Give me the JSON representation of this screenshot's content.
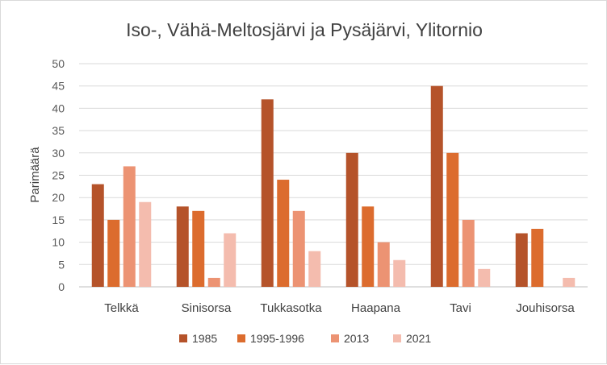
{
  "chart_data": {
    "type": "bar",
    "title": "Iso-, Vähä-Meltosjärvi ja Pysäjärvi, Ylitornio",
    "ylabel": "Parimäärä",
    "xlabel": "",
    "ylim": [
      0,
      50
    ],
    "yticks": [
      0,
      5,
      10,
      15,
      20,
      25,
      30,
      35,
      40,
      45,
      50
    ],
    "grid": true,
    "legend_position": "bottom",
    "categories": [
      "Telkkä",
      "Sinisorsa",
      "Tukkasotka",
      "Haapana",
      "Tavi",
      "Jouhisorsa"
    ],
    "series": [
      {
        "name": "1985",
        "color": "#b5532a",
        "values": [
          23,
          18,
          42,
          30,
          45,
          12
        ]
      },
      {
        "name": "1995-1996",
        "color": "#dc6c2e",
        "values": [
          15,
          17,
          24,
          18,
          30,
          13
        ]
      },
      {
        "name": "2013",
        "color": "#ec9373",
        "values": [
          27,
          2,
          17,
          10,
          15,
          0
        ]
      },
      {
        "name": "2021",
        "color": "#f4bcae",
        "values": [
          19,
          12,
          8,
          6,
          4,
          2
        ]
      }
    ]
  }
}
